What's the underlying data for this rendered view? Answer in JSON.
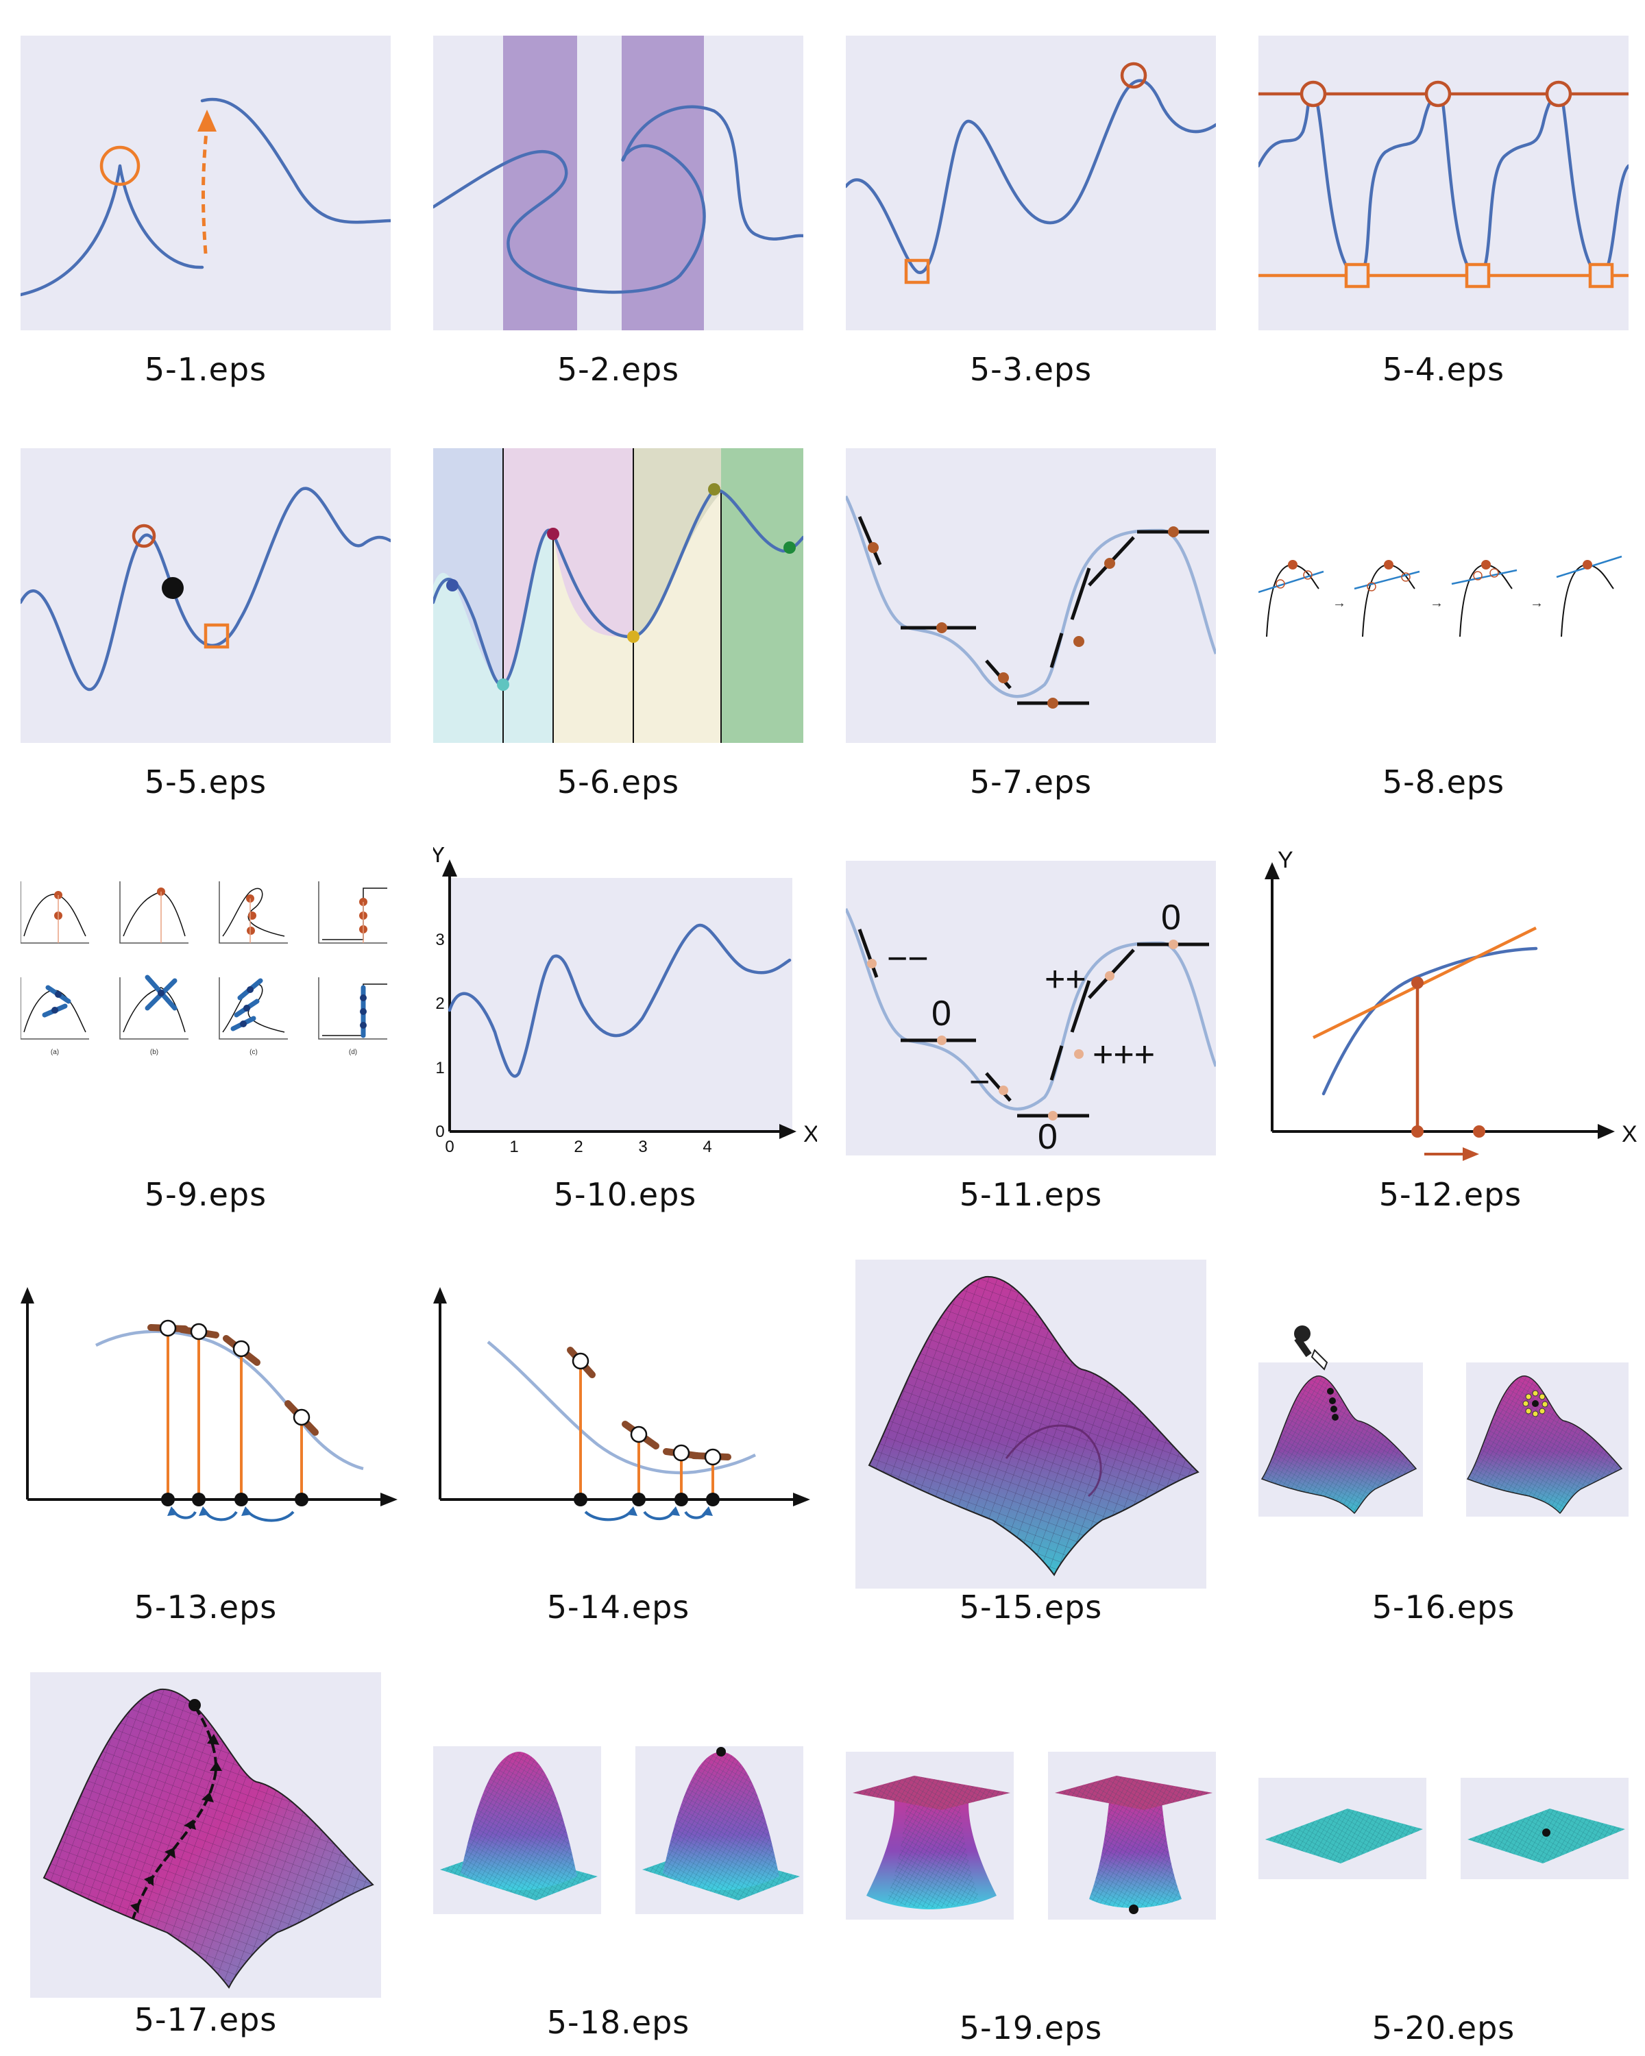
{
  "captions": [
    "5-1.eps",
    "5-2.eps",
    "5-3.eps",
    "5-4.eps",
    "5-5.eps",
    "5-6.eps",
    "5-7.eps",
    "5-8.eps",
    "5-9.eps",
    "5-10.eps",
    "5-11.eps",
    "5-12.eps",
    "5-13.eps",
    "5-14.eps",
    "5-15.eps",
    "5-16.eps",
    "5-17.eps",
    "5-18.eps",
    "5-19.eps",
    "5-20.eps"
  ],
  "fig_5_9": {
    "panel_labels": [
      "(a)",
      "(b)",
      "(c)",
      "(d)"
    ]
  },
  "fig_5_10": {
    "axis_y": "Y",
    "axis_x": "X",
    "x_ticks": [
      "0",
      "1",
      "2",
      "3",
      "4"
    ],
    "y_ticks": [
      "0",
      "1",
      "2",
      "3"
    ]
  },
  "fig_5_11": {
    "labels": [
      "−−",
      "0",
      "−",
      "0",
      "++",
      "+++",
      "0"
    ]
  },
  "fig_5_12": {
    "axis_y": "Y",
    "axis_x": "X"
  },
  "colors": {
    "background": "#e9e9f4",
    "curve": "#4a6fb5",
    "highlight": "#ee7d2a",
    "marker": "#c0532a",
    "surface_high": "#c03aa0",
    "surface_low": "#3fc0d0"
  }
}
